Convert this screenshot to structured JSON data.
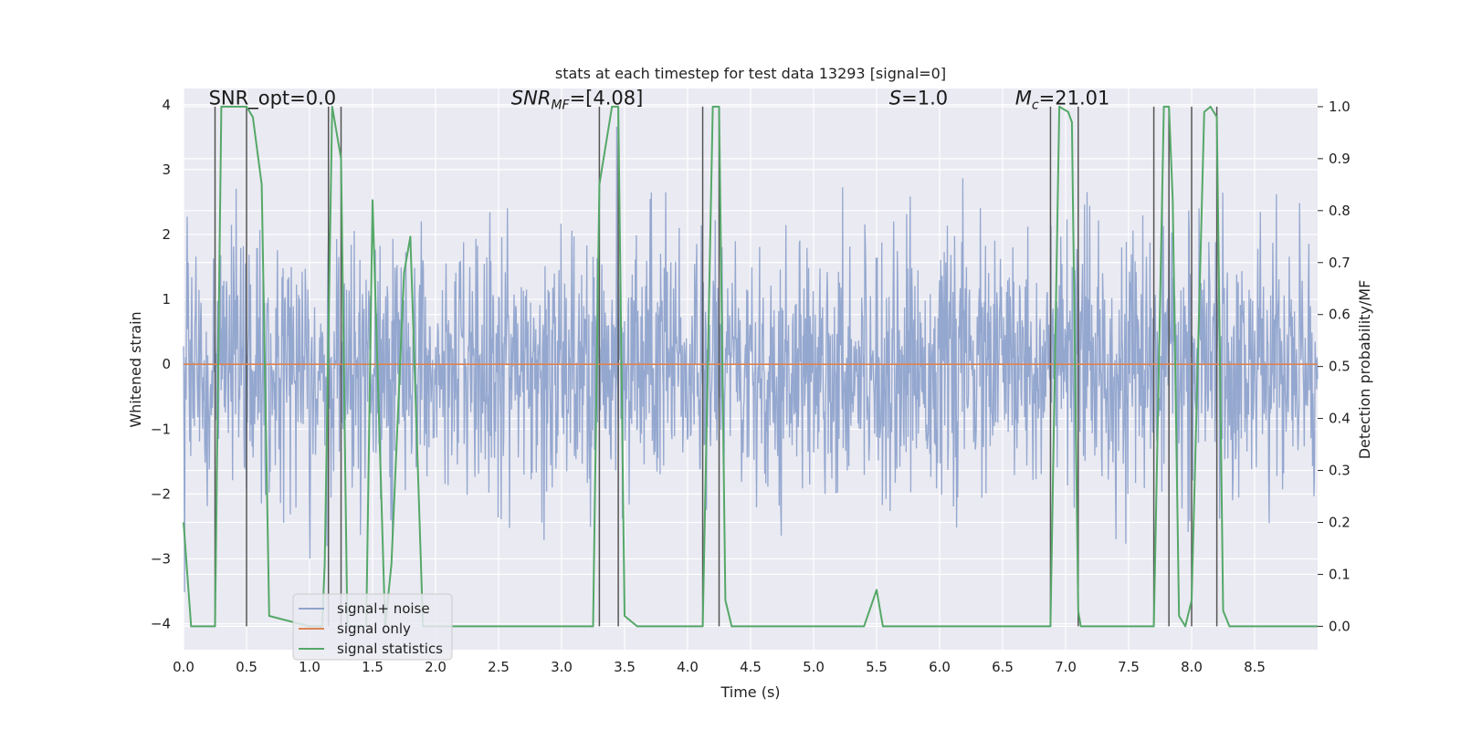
{
  "chart_data": {
    "type": "line",
    "title": "stats at each timestep for test data 13293 [signal=0]",
    "xlabel": "Time (s)",
    "ylabel_left": "Whitened strain",
    "ylabel_right": "Detection probability/MF",
    "xlim": [
      0,
      9.0
    ],
    "ylim_left": [
      -4.4,
      4.25
    ],
    "ylim_right": [
      -0.045,
      1.035
    ],
    "x_ticks": [
      0.0,
      0.5,
      1.0,
      1.5,
      2.0,
      2.5,
      3.0,
      3.5,
      4.0,
      4.5,
      5.0,
      5.5,
      6.0,
      6.5,
      7.0,
      7.5,
      8.0,
      8.5
    ],
    "x_tick_labels": [
      "0.0",
      "0.5",
      "1.0",
      "1.5",
      "2.0",
      "2.5",
      "3.0",
      "3.5",
      "4.0",
      "4.5",
      "5.0",
      "5.5",
      "6.0",
      "6.5",
      "7.0",
      "7.5",
      "8.0",
      "8.5"
    ],
    "y_left_ticks": [
      -4,
      -3,
      -2,
      -1,
      0,
      1,
      2,
      3,
      4
    ],
    "y_left_tick_labels": [
      "−4",
      "−3",
      "−2",
      "−1",
      "0",
      "1",
      "2",
      "3",
      "4"
    ],
    "y_right_ticks": [
      0.0,
      0.1,
      0.2,
      0.3,
      0.4,
      0.5,
      0.6,
      0.7,
      0.8,
      0.9,
      1.0
    ],
    "y_right_tick_labels": [
      "0.0",
      "0.1",
      "0.2",
      "0.3",
      "0.4",
      "0.5",
      "0.6",
      "0.7",
      "0.8",
      "0.9",
      "1.0"
    ],
    "grid": true,
    "annotations": [
      {
        "text": "SNR_opt=0.0",
        "x": 0.2,
        "y": 4.1
      },
      {
        "text": "SNR_MF=[4.08]",
        "x": 2.6,
        "y": 4.1
      },
      {
        "text": "S=1.0",
        "x": 5.6,
        "y": 4.1
      },
      {
        "text": "M_c=21.01",
        "x": 6.6,
        "y": 4.1
      }
    ],
    "legend": {
      "position": "lower-left",
      "entries": [
        "signal+ noise",
        "signal only",
        "signal statistics"
      ]
    },
    "colors": {
      "noise": "#8fa3cc",
      "signal_only": "#dd8452",
      "statistics": "#55a868",
      "vlines": "#555555",
      "background": "#eaeaf2"
    },
    "series": [
      {
        "name": "signal+ noise",
        "axis": "left",
        "note_type": "noise",
        "n": 2200,
        "stats": {
          "mean": 0.0,
          "std": 0.95
        }
      },
      {
        "name": "signal only",
        "axis": "left",
        "x": [
          0,
          9.0
        ],
        "y": [
          0,
          0
        ]
      },
      {
        "name": "signal statistics",
        "axis": "right",
        "x": [
          0.0,
          0.06,
          0.25,
          0.3,
          0.5,
          0.55,
          0.62,
          0.68,
          1.0,
          1.1,
          1.12,
          1.18,
          1.25,
          1.3,
          1.45,
          1.5,
          1.6,
          1.65,
          1.75,
          1.8,
          1.9,
          2.0,
          3.25,
          3.3,
          3.4,
          3.45,
          3.5,
          3.6,
          4.1,
          4.12,
          4.2,
          4.25,
          4.3,
          4.35,
          4.4,
          5.4,
          5.5,
          5.55,
          5.6,
          6.85,
          6.88,
          6.95,
          7.02,
          7.05,
          7.1,
          7.12,
          7.65,
          7.7,
          7.78,
          7.82,
          7.85,
          7.9,
          7.95,
          8.0,
          8.1,
          8.15,
          8.2,
          8.25,
          8.3,
          8.35,
          9.0
        ],
        "y": [
          0.2,
          0.0,
          0.0,
          1.0,
          1.0,
          0.98,
          0.85,
          0.02,
          0.0,
          0.0,
          0.12,
          1.0,
          0.9,
          0.0,
          0.0,
          0.82,
          0.0,
          0.12,
          0.68,
          0.75,
          0.0,
          0.0,
          0.0,
          0.85,
          1.0,
          1.0,
          0.02,
          0.0,
          0.0,
          0.0,
          1.0,
          1.0,
          0.05,
          0.0,
          0.0,
          0.0,
          0.07,
          0.0,
          0.0,
          0.0,
          0.0,
          1.0,
          0.99,
          0.97,
          0.03,
          0.0,
          0.0,
          0.0,
          1.0,
          1.0,
          0.82,
          0.02,
          0.0,
          0.05,
          0.99,
          1.0,
          0.98,
          0.03,
          0.0,
          0.0,
          0.0
        ]
      }
    ],
    "vlines_x": [
      0.25,
      0.5,
      1.15,
      1.25,
      3.3,
      3.45,
      4.12,
      4.25,
      6.88,
      7.1,
      7.7,
      7.82,
      8.0,
      8.2
    ]
  }
}
